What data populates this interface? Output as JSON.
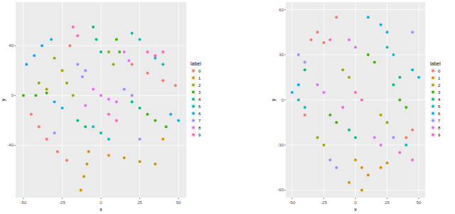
{
  "chart_data": [
    {
      "type": "scatter",
      "x_label": "x",
      "y_label": "y",
      "legend_title": "label",
      "legend": "right",
      "grid": true,
      "xlim": [
        -55,
        55
      ],
      "ylim": [
        -82,
        75
      ],
      "xticks": [
        -50,
        -25,
        0,
        25,
        50
      ],
      "yticks": [
        -40,
        0,
        40
      ],
      "series": [
        {
          "name": "0",
          "color": "#F8766D",
          "x": [
            -45,
            -40,
            -35,
            -28,
            -22,
            20,
            30,
            40,
            48,
            -20
          ],
          "values": [
            -15,
            -25,
            -35,
            -45,
            -52,
            25,
            18,
            12,
            8,
            40
          ]
        },
        {
          "name": "1",
          "color": "#D89000",
          "x": [
            -8,
            -9,
            -11,
            -13,
            5,
            15,
            25,
            35,
            40
          ],
          "values": [
            -45,
            -55,
            -65,
            -76,
            -48,
            -50,
            -53,
            -55,
            -35
          ]
        },
        {
          "name": "2",
          "color": "#A3A500",
          "x": [
            -30,
            -25,
            -22,
            -18,
            5,
            8,
            -35,
            -40
          ],
          "values": [
            30,
            20,
            10,
            0,
            35,
            25,
            5,
            10
          ]
        },
        {
          "name": "3",
          "color": "#39B600",
          "x": [
            -50,
            -42,
            -35,
            30,
            35,
            42,
            10,
            12
          ],
          "values": [
            0,
            0,
            2,
            -15,
            -20,
            -25,
            45,
            35
          ]
        },
        {
          "name": "4",
          "color": "#00BF7D",
          "x": [
            -5,
            -3,
            0,
            20,
            25,
            -15,
            -10
          ],
          "values": [
            55,
            45,
            35,
            -5,
            -10,
            -20,
            -25
          ]
        },
        {
          "name": "5",
          "color": "#00BFC4",
          "x": [
            -5,
            0,
            5,
            35,
            40,
            20,
            25
          ],
          "values": [
            -25,
            -30,
            -35,
            30,
            25,
            50,
            45
          ]
        },
        {
          "name": "6",
          "color": "#00B0F6",
          "x": [
            -48,
            -43,
            -38,
            -32,
            -30,
            -25,
            45,
            50
          ],
          "values": [
            25,
            32,
            40,
            45,
            -5,
            -10,
            -15,
            -20
          ]
        },
        {
          "name": "7",
          "color": "#9590FF",
          "x": [
            -15,
            -10,
            -12,
            15,
            20,
            -30,
            25
          ],
          "values": [
            25,
            20,
            15,
            5,
            0,
            -30,
            -35
          ]
        },
        {
          "name": "8",
          "color": "#E76BF3",
          "x": [
            0,
            5,
            10,
            -5,
            -10,
            15,
            18
          ],
          "values": [
            0,
            -3,
            -5,
            5,
            -8,
            35,
            28
          ]
        },
        {
          "name": "9",
          "color": "#FF62BC",
          "x": [
            30,
            35,
            40,
            -18,
            -15,
            5,
            10
          ],
          "values": [
            35,
            32,
            35,
            55,
            48,
            -15,
            -20
          ]
        }
      ]
    },
    {
      "type": "scatter",
      "x_label": "x",
      "y_label": "y",
      "legend_title": "label",
      "legend": "right",
      "grid": true,
      "xlim": [
        -55,
        55
      ],
      "ylim": [
        -65,
        65
      ],
      "xticks": [
        -50,
        -25,
        0,
        25,
        50
      ],
      "yticks": [
        -60,
        -30,
        0,
        30,
        60
      ],
      "series": [
        {
          "name": "0",
          "color": "#F8766D",
          "x": [
            -35,
            -30,
            -25,
            -15,
            40,
            45,
            -40
          ],
          "values": [
            40,
            45,
            38,
            55,
            -25,
            -20,
            -10
          ]
        },
        {
          "name": "1",
          "color": "#D89000",
          "x": [
            0,
            5,
            10,
            20,
            25,
            -5,
            5
          ],
          "values": [
            -40,
            -45,
            -50,
            -45,
            -42,
            -55,
            -60
          ]
        },
        {
          "name": "2",
          "color": "#A3A500",
          "x": [
            -10,
            -5,
            20,
            25,
            -30,
            -25
          ],
          "values": [
            20,
            15,
            -10,
            -15,
            -25,
            -30
          ]
        },
        {
          "name": "3",
          "color": "#39B600",
          "x": [
            10,
            15,
            -20,
            -15,
            35,
            40
          ],
          "values": [
            30,
            25,
            -10,
            -15,
            0,
            -5
          ]
        },
        {
          "name": "4",
          "color": "#00BF7D",
          "x": [
            -5,
            0,
            30,
            35,
            -40
          ],
          "values": [
            -20,
            -25,
            10,
            15,
            20
          ]
        },
        {
          "name": "5",
          "color": "#00BFC4",
          "x": [
            25,
            30,
            -45,
            -40,
            40
          ],
          "values": [
            35,
            30,
            0,
            -5,
            -30
          ]
        },
        {
          "name": "6",
          "color": "#00B0F6",
          "x": [
            20,
            25,
            -45,
            -50,
            45,
            50,
            10
          ],
          "values": [
            50,
            45,
            10,
            5,
            20,
            15,
            55
          ]
        },
        {
          "name": "7",
          "color": "#9590FF",
          "x": [
            -45,
            -40,
            -20,
            -15,
            30,
            45
          ],
          "values": [
            30,
            25,
            -40,
            -45,
            -25,
            45
          ]
        },
        {
          "name": "8",
          "color": "#E76BF3",
          "x": [
            -5,
            0,
            15,
            20,
            -30,
            -25
          ],
          "values": [
            40,
            35,
            -25,
            -30,
            10,
            5
          ]
        },
        {
          "name": "9",
          "color": "#FF62BC",
          "x": [
            0,
            5,
            -10,
            35,
            -20,
            45
          ],
          "values": [
            5,
            0,
            -5,
            -35,
            40,
            -40
          ]
        }
      ]
    }
  ]
}
